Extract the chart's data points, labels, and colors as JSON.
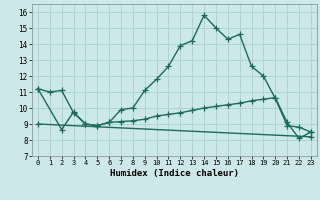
{
  "xlabel": "Humidex (Indice chaleur)",
  "xlim": [
    -0.5,
    23.5
  ],
  "ylim": [
    7,
    16.5
  ],
  "yticks": [
    7,
    8,
    9,
    10,
    11,
    12,
    13,
    14,
    15,
    16
  ],
  "xticks": [
    0,
    1,
    2,
    3,
    4,
    5,
    6,
    7,
    8,
    9,
    10,
    11,
    12,
    13,
    14,
    15,
    16,
    17,
    18,
    19,
    20,
    21,
    22,
    23
  ],
  "bg_color": "#cce8e8",
  "grid_color": "#aad4d4",
  "line_color": "#1a6b5a",
  "line1_x": [
    0,
    1,
    2,
    3,
    4,
    5,
    6,
    7,
    8,
    9,
    10,
    11,
    12,
    13,
    14,
    15,
    16,
    17,
    18,
    19,
    20,
    21,
    22,
    23
  ],
  "line1_y": [
    11.2,
    11.0,
    11.1,
    9.7,
    9.0,
    8.9,
    9.1,
    9.9,
    10.0,
    11.1,
    11.8,
    12.6,
    13.9,
    14.2,
    15.8,
    15.0,
    14.3,
    14.6,
    12.6,
    12.0,
    10.6,
    8.9,
    8.8,
    8.5
  ],
  "line2_x": [
    0,
    2,
    3,
    4,
    5,
    6,
    7,
    8,
    9,
    10,
    11,
    12,
    13,
    14,
    15,
    16,
    17,
    18,
    19,
    20,
    21,
    22,
    23
  ],
  "line2_y": [
    11.2,
    8.65,
    9.75,
    9.0,
    8.9,
    9.1,
    9.15,
    9.2,
    9.3,
    9.5,
    9.6,
    9.7,
    9.85,
    10.0,
    10.1,
    10.2,
    10.3,
    10.45,
    10.55,
    10.65,
    9.1,
    8.1,
    8.5
  ],
  "line3_x": [
    0,
    23
  ],
  "line3_y": [
    9.0,
    8.2
  ]
}
